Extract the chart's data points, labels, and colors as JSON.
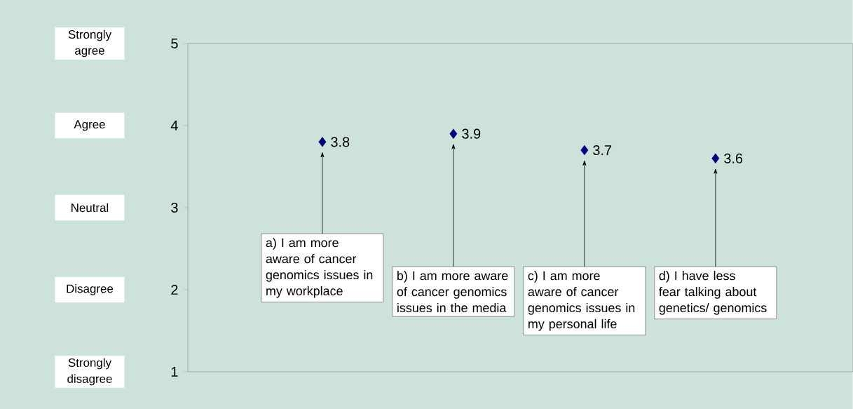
{
  "chart_data": {
    "type": "scatter",
    "categories": [
      "a) I am more aware of cancer genomics issues in my workplace",
      "b) I am more aware of cancer genomics issues in the media",
      "c) I am more aware of cancer genomics issues in my personal life",
      "d) I have less fear talking about genetics/ genomics"
    ],
    "values": [
      3.8,
      3.9,
      3.7,
      3.6
    ],
    "color": "#000080",
    "marker": "diamond",
    "data_labels": true,
    "ylim": [
      1,
      5
    ],
    "yticks": [
      {
        "value": 1,
        "label": "1"
      },
      {
        "value": 2,
        "label": "2"
      },
      {
        "value": 3,
        "label": "3"
      },
      {
        "value": 4,
        "label": "4"
      },
      {
        "value": 5,
        "label": "5"
      }
    ],
    "grid": false,
    "annotations": [
      "Strongly agree",
      "Agree",
      "Neutral",
      "Disagree",
      "Strongly disagree"
    ]
  }
}
